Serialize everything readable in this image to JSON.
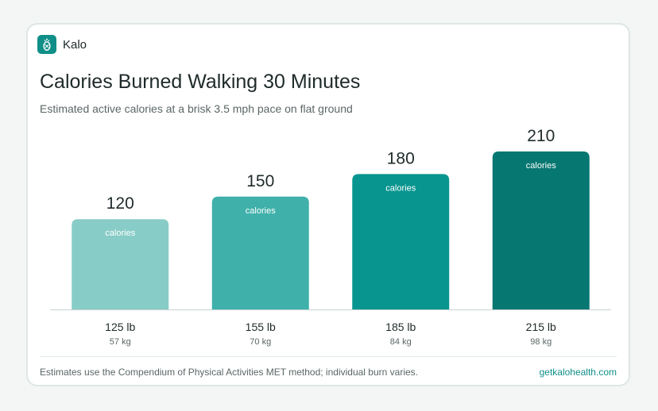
{
  "brand": {
    "name": "Kalo",
    "icon": "pineapple-icon",
    "color": "#0f8f88"
  },
  "chart_data": {
    "type": "bar",
    "title": "Calories Burned Walking 30 Minutes",
    "subtitle": "Estimated active calories at a brisk 3.5 mph pace on flat ground",
    "categories": [
      "125 lb",
      "155 lb",
      "185 lb",
      "215 lb"
    ],
    "sublabels": [
      "57 kg",
      "70 kg",
      "84 kg",
      "98 kg"
    ],
    "values": [
      120,
      150,
      180,
      210
    ],
    "bar_label": "calories",
    "colors": [
      "#88ccc7",
      "#3fb0aa",
      "#08958f",
      "#077771"
    ],
    "ylim": [
      0,
      270
    ],
    "grid": false,
    "legend": "none"
  },
  "footer": {
    "note": "Estimates use the Compendium of Physical Activities MET method; individual burn varies.",
    "source": "getkalohealth.com"
  }
}
